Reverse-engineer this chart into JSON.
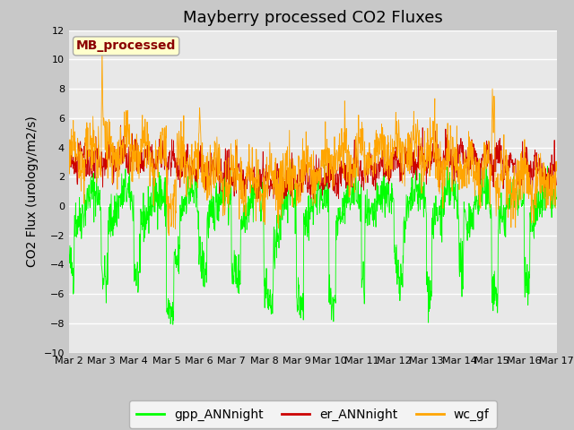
{
  "title": "Mayberry processed CO2 Fluxes",
  "ylabel": "CO2 Flux (urology/m2/s)",
  "ylim": [
    -10,
    12
  ],
  "yticks": [
    -10,
    -8,
    -6,
    -4,
    -2,
    0,
    2,
    4,
    6,
    8,
    10,
    12
  ],
  "x_tick_labels": [
    "Mar 2",
    "Mar 3",
    "Mar 4",
    "Mar 5",
    "Mar 6",
    "Mar 7",
    "Mar 8",
    "Mar 9",
    "Mar 10",
    "Mar 11",
    "Mar 12",
    "Mar 13",
    "Mar 14",
    "Mar 15",
    "Mar 16",
    "Mar 17"
  ],
  "color_gpp": "#00FF00",
  "color_er": "#CC0000",
  "color_wc": "#FFA500",
  "legend_labels": [
    "gpp_ANNnight",
    "er_ANNnight",
    "wc_gf"
  ],
  "annotation_text": "MB_processed",
  "annotation_color": "#8B0000",
  "annotation_bg": "#FFFFCC",
  "annotation_edge": "#AAAAAA",
  "fig_bg": "#C8C8C8",
  "plot_bg": "#E8E8E8",
  "title_fontsize": 13,
  "label_fontsize": 10,
  "tick_fontsize": 8,
  "seed": 42,
  "n_points": 1440,
  "days": 15
}
